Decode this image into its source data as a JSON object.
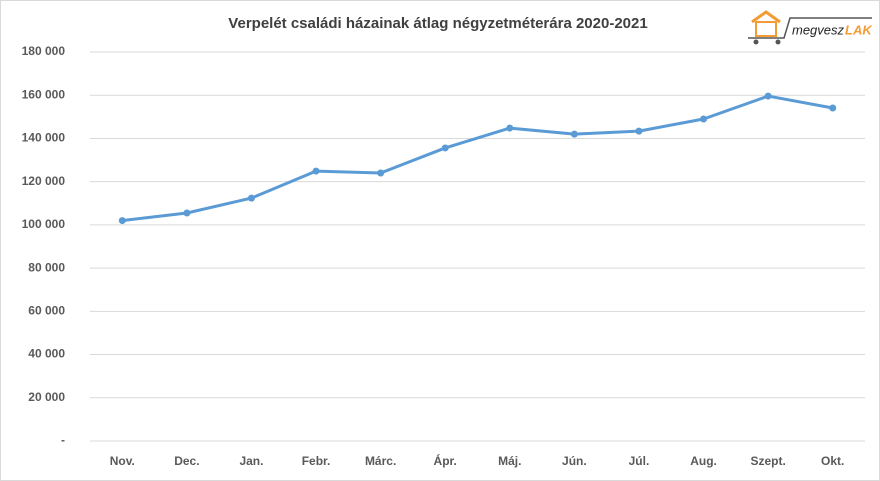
{
  "chart_data": {
    "type": "line",
    "title": "Verpelét családi házainak átlag négyzetméterára 2020-2021",
    "categories": [
      "Nov.",
      "Dec.",
      "Jan.",
      "Febr.",
      "Márc.",
      "Ápr.",
      "Máj.",
      "Jún.",
      "Júl.",
      "Aug.",
      "Szept.",
      "Okt."
    ],
    "values": [
      102000,
      105500,
      112400,
      124900,
      124000,
      135600,
      144800,
      142000,
      143400,
      149000,
      159600,
      154100
    ],
    "color": "#5b9bd5",
    "ylim": [
      0,
      180000
    ],
    "yticks": [
      {
        "value": 0,
        "label": "-"
      },
      {
        "value": 20000,
        "label": "20 000"
      },
      {
        "value": 40000,
        "label": "40 000"
      },
      {
        "value": 60000,
        "label": "60 000"
      },
      {
        "value": 80000,
        "label": "80 000"
      },
      {
        "value": 100000,
        "label": "100 000"
      },
      {
        "value": 120000,
        "label": "120 000"
      },
      {
        "value": 140000,
        "label": "140 000"
      },
      {
        "value": 160000,
        "label": "160 000"
      },
      {
        "value": 180000,
        "label": "180 000"
      }
    ],
    "grid": true
  },
  "logo": {
    "brand": "megvesz",
    "accent": "LAK"
  }
}
